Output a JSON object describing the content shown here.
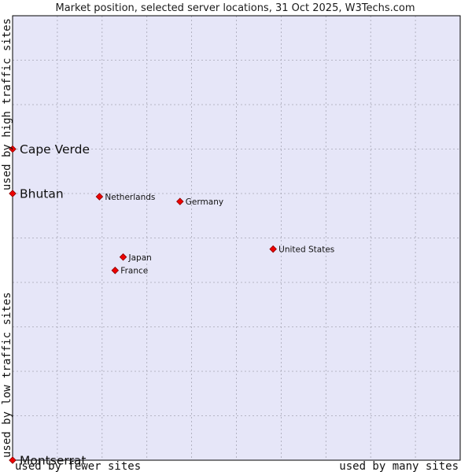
{
  "chart_data": {
    "type": "scatter",
    "title": "Market position, selected server locations, 31 Oct 2025, W3Techs.com",
    "xlabel_left": "used by fewer sites",
    "xlabel_right": "used by many sites",
    "ylabel_bottom": "used by low traffic sites",
    "ylabel_top": "used by high traffic sites",
    "xlim": [
      0,
      10
    ],
    "ylim": [
      0,
      10
    ],
    "grid": true,
    "colors": {
      "plot_background": "#e6e6f8",
      "grid": "#a5a5b4",
      "marker": "#ee0000",
      "marker_edge": "#8a0000",
      "frame": "#000000"
    },
    "points": [
      {
        "name": "Cape Verde",
        "x": 0.0,
        "y": 7.0,
        "label_size": "large"
      },
      {
        "name": "Bhutan",
        "x": 0.0,
        "y": 6.0,
        "label_size": "large"
      },
      {
        "name": "Netherlands",
        "x": 1.94,
        "y": 5.93,
        "label_size": "small"
      },
      {
        "name": "Germany",
        "x": 3.74,
        "y": 5.82,
        "label_size": "small"
      },
      {
        "name": "United States",
        "x": 5.82,
        "y": 4.75,
        "label_size": "small"
      },
      {
        "name": "Japan",
        "x": 2.47,
        "y": 4.57,
        "label_size": "small"
      },
      {
        "name": "France",
        "x": 2.29,
        "y": 4.27,
        "label_size": "small"
      },
      {
        "name": "Montserrat",
        "x": 0.0,
        "y": 0.0,
        "label_size": "large"
      }
    ]
  }
}
